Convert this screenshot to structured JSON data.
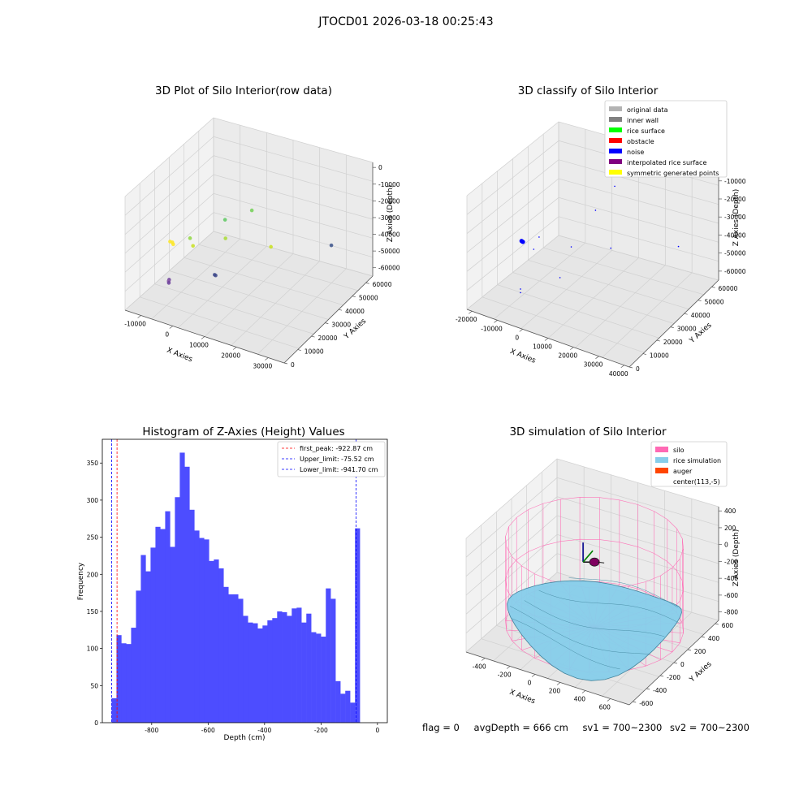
{
  "suptitle": "JTOCD01 2026-03-18 00:25:43",
  "footer": {
    "flag": "flag = 0",
    "avg_depth": "avgDepth = 666 cm",
    "sv1": "sv1 = 700~2300",
    "sv2": "sv2 = 700~2300"
  },
  "chart_data": [
    {
      "type": "scatter",
      "projection": "3d",
      "title": "3D Plot of Silo Interior(row data)",
      "xlabel": "X Axies",
      "ylabel": "Y Axies",
      "zlabel": "Z Axies (Depth)",
      "x_ticks": [
        "-10000",
        "0",
        "10000",
        "20000",
        "30000"
      ],
      "y_ticks": [
        "0",
        "10000",
        "20000",
        "30000",
        "40000",
        "50000",
        "60000"
      ],
      "z_ticks": [
        "0",
        "-10000",
        "-20000",
        "-30000",
        "-40000",
        "-50000",
        "-60000"
      ],
      "xlim": [
        -15000,
        35000
      ],
      "ylim": [
        0,
        65000
      ],
      "zlim": [
        -65000,
        3000
      ],
      "colormap": "viridis (by depth)",
      "grid": true,
      "points": [
        {
          "x": -3000,
          "y": 5000,
          "z": -20000,
          "color": "#fde725"
        },
        {
          "x": -2500,
          "y": 5500,
          "z": -20500,
          "color": "#fde725"
        },
        {
          "x": -2000,
          "y": 5000,
          "z": -21000,
          "color": "#fde725"
        },
        {
          "x": 2000,
          "y": 8000,
          "z": -17000,
          "color": "#90d743"
        },
        {
          "x": 2500,
          "y": 9000,
          "z": -22000,
          "color": "#c8e020"
        },
        {
          "x": 10000,
          "y": 15000,
          "z": -6000,
          "color": "#5ec962"
        },
        {
          "x": 12000,
          "y": 30000,
          "z": -10000,
          "color": "#73d056"
        },
        {
          "x": 8000,
          "y": 20000,
          "z": -22000,
          "color": "#a8db34"
        },
        {
          "x": 18000,
          "y": 30000,
          "z": -28000,
          "color": "#c8e020"
        },
        {
          "x": 25000,
          "y": 58000,
          "z": -43000,
          "color": "#3b528b"
        },
        {
          "x": 8000,
          "y": 12000,
          "z": -38000,
          "color": "#3e4989"
        },
        {
          "x": 8200,
          "y": 12300,
          "z": -38500,
          "color": "#3e4989"
        },
        {
          "x": -2000,
          "y": 2000,
          "z": -40000,
          "color": "#6a3d9a"
        },
        {
          "x": -2200,
          "y": 2100,
          "z": -41000,
          "color": "#8b5ca8"
        },
        {
          "x": -2100,
          "y": 2000,
          "z": -42000,
          "color": "#6a3d9a"
        }
      ]
    },
    {
      "type": "scatter",
      "projection": "3d",
      "title": "3D classify of Silo Interior",
      "xlabel": "X Axies",
      "ylabel": "Y Axies",
      "zlabel": "Z Axies (Depth)",
      "x_ticks": [
        "-20000",
        "-10000",
        "0",
        "10000",
        "20000",
        "30000",
        "40000"
      ],
      "y_ticks": [
        "0",
        "10000",
        "20000",
        "30000",
        "40000",
        "50000",
        "60000"
      ],
      "z_ticks": [
        "-10000",
        "-20000",
        "-30000",
        "-40000",
        "-50000",
        "-60000"
      ],
      "xlim": [
        -22000,
        42000
      ],
      "ylim": [
        0,
        65000
      ],
      "zlim": [
        -65000,
        -2000
      ],
      "grid": true,
      "legend": {
        "placement": "top-right",
        "entries": [
          {
            "label": "original data",
            "color": "#b3b3b3"
          },
          {
            "label": "inner wall",
            "color": "#808080"
          },
          {
            "label": "rice surface",
            "color": "#00ff00"
          },
          {
            "label": "obstacle",
            "color": "#ff0000"
          },
          {
            "label": "noise",
            "color": "#0000ff"
          },
          {
            "label": "interpolated rice surface",
            "color": "#800080"
          },
          {
            "label": "symmetric generated points",
            "color": "#ffff00"
          }
        ]
      },
      "points": [
        {
          "x": -3000,
          "y": 5000,
          "z": -21000,
          "color": "#0000ff",
          "size": 3
        },
        {
          "x": -2800,
          "y": 5200,
          "z": -21300,
          "color": "#0000ff",
          "size": 3
        },
        {
          "x": -3200,
          "y": 4900,
          "z": -20800,
          "color": "#0000ff",
          "size": 3
        },
        {
          "x": 2000,
          "y": 8000,
          "z": -18000,
          "color": "#0000ff",
          "size": 1
        },
        {
          "x": 1000,
          "y": 6000,
          "z": -24000,
          "color": "#0000ff",
          "size": 1
        },
        {
          "x": 12000,
          "y": 30000,
          "z": -12000,
          "color": "#0000ff",
          "size": 1
        },
        {
          "x": 18000,
          "y": 30000,
          "z": -30000,
          "color": "#0000ff",
          "size": 1
        },
        {
          "x": 8000,
          "y": 20000,
          "z": -28000,
          "color": "#0000ff",
          "size": 1
        },
        {
          "x": 14000,
          "y": 40000,
          "z": -4000,
          "color": "#0000ff",
          "size": 1
        },
        {
          "x": 28000,
          "y": 60000,
          "z": -43000,
          "color": "#0000ff",
          "size": 1
        },
        {
          "x": 8000,
          "y": 12000,
          "z": -40000,
          "color": "#0000ff",
          "size": 1
        },
        {
          "x": -2000,
          "y": 2000,
          "z": -45000,
          "color": "#0000ff",
          "size": 1
        },
        {
          "x": -2000,
          "y": 2000,
          "z": -47000,
          "color": "#0000ff",
          "size": 1
        }
      ]
    },
    {
      "type": "bar",
      "subtype": "histogram",
      "title": "Histogram of Z-Axies (Height) Values",
      "xlabel": "Depth (cm)",
      "ylabel": "Frequency",
      "xlim": [
        -975,
        35
      ],
      "ylim": [
        0,
        382
      ],
      "x_ticks": [
        "-800",
        "-600",
        "-400",
        "-200",
        "0"
      ],
      "x_tick_values": [
        -800,
        -600,
        -400,
        -200,
        0
      ],
      "y_ticks": [
        "0",
        "50",
        "100",
        "150",
        "200",
        "250",
        "300",
        "350"
      ],
      "y_tick_values": [
        0,
        50,
        100,
        150,
        200,
        250,
        300,
        350
      ],
      "bar_color": "#4d4dff",
      "bin_start": -942,
      "bin_width": 17.25,
      "values": [
        33,
        118,
        107,
        106,
        128,
        178,
        226,
        204,
        236,
        264,
        261,
        285,
        237,
        304,
        364,
        345,
        287,
        259,
        249,
        247,
        218,
        220,
        208,
        183,
        173,
        173,
        167,
        144,
        135,
        134,
        127,
        131,
        138,
        141,
        150,
        149,
        144,
        154,
        155,
        135,
        147,
        122,
        120,
        116,
        181,
        167,
        56,
        39,
        43,
        27,
        262
      ],
      "vlines": [
        {
          "label": "first_peak: -922.87 cm",
          "x": -922.87,
          "color": "#ff0000"
        },
        {
          "label": "Upper_limit: -75.52 cm",
          "x": -75.52,
          "color": "#0000ff"
        },
        {
          "label": "Lower_limit: -941.70 cm",
          "x": -941.7,
          "color": "#0000ff"
        }
      ],
      "legend": {
        "placement": "top-right"
      },
      "grid": false
    },
    {
      "type": "surface",
      "projection": "3d",
      "title": "3D simulation of Silo Interior",
      "xlabel": "X Axies",
      "ylabel": "Y Axies",
      "zlabel": "Z Axies (Depth)",
      "x_ticks": [
        "-400",
        "-200",
        "0",
        "200",
        "400",
        "600"
      ],
      "y_ticks": [
        "-600",
        "-400",
        "-200",
        "0",
        "200",
        "400",
        "600"
      ],
      "z_ticks": [
        "400",
        "200",
        "0",
        "-200",
        "-400",
        "-600",
        "-800"
      ],
      "xlim": [
        -550,
        750
      ],
      "ylim": [
        -650,
        650
      ],
      "zlim": [
        -900,
        450
      ],
      "grid": true,
      "legend": {
        "placement": "top-right",
        "entries": [
          {
            "label": "silo",
            "color": "#ff69b4"
          },
          {
            "label": "rice simulation",
            "color": "#87ceeb"
          },
          {
            "label": "auger",
            "color": "#ff4500"
          },
          {
            "label": "center(113,-5)",
            "color": "#ffffff"
          }
        ]
      },
      "silo": {
        "center_x": 113,
        "center_y": -5,
        "radius": 620,
        "z_top": 250,
        "z_bottom": -750
      },
      "rice_surface_depth_avg": -666
    }
  ]
}
